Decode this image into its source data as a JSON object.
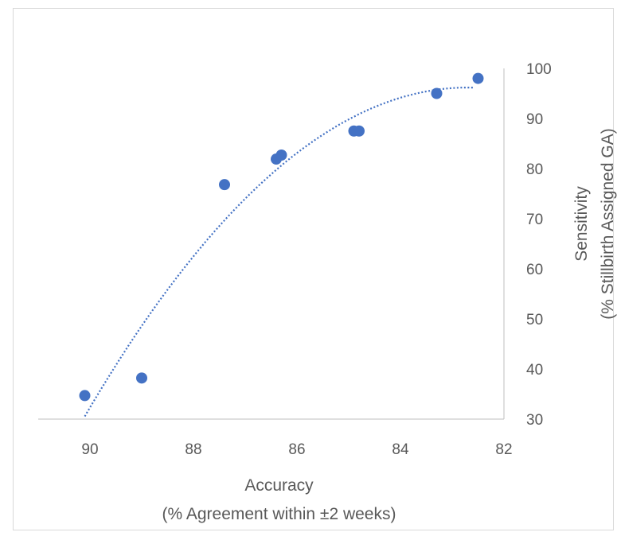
{
  "chart_data": {
    "type": "scatter",
    "title": "",
    "xlabel": [
      "Accuracy",
      "(% Agreement within ±2 weeks)"
    ],
    "ylabel": [
      "Sensitivity",
      "(% Stillbirth Assigned GA)"
    ],
    "x_reversed": true,
    "xlim": [
      91,
      82
    ],
    "ylim": [
      30,
      100
    ],
    "x_ticks": [
      90,
      88,
      86,
      84,
      82
    ],
    "y_ticks": [
      30,
      40,
      50,
      60,
      70,
      80,
      90,
      100
    ],
    "y_axis_position": "right",
    "grid": false,
    "legend": "none",
    "marker_color": "#4472C4",
    "trendline": {
      "type": "polynomial (dotted)",
      "color": "#4472C4",
      "x_range": [
        90.1,
        82.6
      ]
    },
    "series": [
      {
        "x": [
          90.1,
          89.0,
          87.4,
          86.4,
          86.3,
          84.9,
          84.8,
          83.3,
          82.5
        ],
        "y": [
          34.7,
          38.2,
          76.8,
          81.9,
          82.7,
          87.5,
          87.5,
          95.0,
          98.0
        ]
      }
    ]
  }
}
